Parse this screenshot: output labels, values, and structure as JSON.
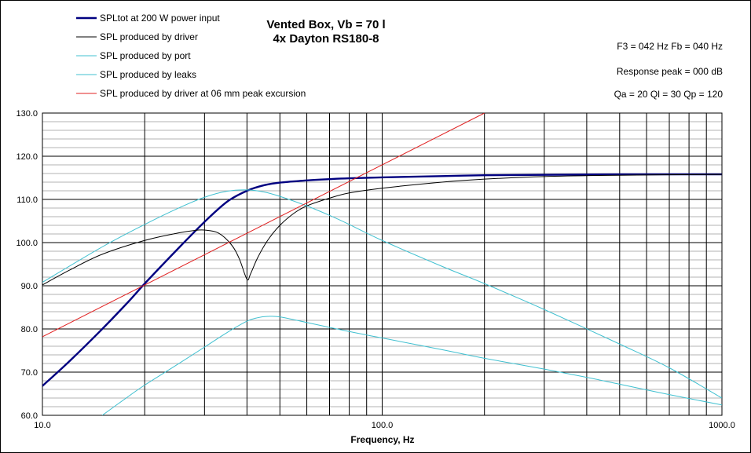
{
  "chart_data": {
    "type": "line",
    "title": "Vented Box, Vb = 70 l",
    "subtitle": "4x Dayton RS180-8",
    "xlabel": "Frequency, Hz",
    "ylabel": "",
    "x_scale": "log",
    "xlim": [
      10,
      1000
    ],
    "ylim": [
      60,
      130
    ],
    "x_tick_labels": [
      "10.0",
      "100.0",
      "1000.0"
    ],
    "y_tick_labels": [
      "60.0",
      "70.0",
      "80.0",
      "90.0",
      "100.0",
      "110.0",
      "120.0",
      "130.0"
    ],
    "grid": true,
    "legend_position": "top-left",
    "annotations": [
      "F3 = 042 Hz  Fb = 040 Hz",
      "Response  peak = 000 dB",
      "Qa = 20  Ql = 30  Qp = 120"
    ],
    "series": [
      {
        "name": "SPLtot at 200 W power input",
        "color": "#000080",
        "points": [
          [
            10,
            66.8
          ],
          [
            12,
            72.5
          ],
          [
            15,
            80
          ],
          [
            18,
            86.5
          ],
          [
            20,
            90.5
          ],
          [
            25,
            98.5
          ],
          [
            30,
            104.8
          ],
          [
            35,
            109.5
          ],
          [
            40,
            112
          ],
          [
            45,
            113.3
          ],
          [
            50,
            113.9
          ],
          [
            60,
            114.4
          ],
          [
            70,
            114.7
          ],
          [
            80,
            114.9
          ],
          [
            100,
            115.1
          ],
          [
            150,
            115.4
          ],
          [
            200,
            115.6
          ],
          [
            300,
            115.7
          ],
          [
            500,
            115.8
          ],
          [
            1000,
            115.8
          ]
        ]
      },
      {
        "name": "SPL produced by driver",
        "color": "#000000",
        "points": [
          [
            10,
            90.2
          ],
          [
            12,
            93.6
          ],
          [
            15,
            97.3
          ],
          [
            20,
            100.5
          ],
          [
            25,
            102.2
          ],
          [
            28,
            102.8
          ],
          [
            30,
            102.9
          ],
          [
            33,
            102.2
          ],
          [
            36,
            99.5
          ],
          [
            38,
            96.2
          ],
          [
            40,
            91.5
          ],
          [
            41,
            92.8
          ],
          [
            43,
            96.5
          ],
          [
            46,
            100.5
          ],
          [
            50,
            104
          ],
          [
            55,
            106.8
          ],
          [
            60,
            108.5
          ],
          [
            70,
            110.3
          ],
          [
            80,
            111.5
          ],
          [
            100,
            112.6
          ],
          [
            150,
            114
          ],
          [
            200,
            114.7
          ],
          [
            300,
            115.3
          ],
          [
            500,
            115.6
          ],
          [
            1000,
            115.8
          ]
        ]
      },
      {
        "name": "SPL produced by port",
        "color": "#40C0D0",
        "points": [
          [
            10,
            90.8
          ],
          [
            15,
            99
          ],
          [
            20,
            104.2
          ],
          [
            25,
            107.9
          ],
          [
            30,
            110.5
          ],
          [
            35,
            111.9
          ],
          [
            40,
            112.2
          ],
          [
            45,
            111.7
          ],
          [
            50,
            110.7
          ],
          [
            60,
            108.5
          ],
          [
            70,
            106.3
          ],
          [
            80,
            104.2
          ],
          [
            100,
            100.5
          ],
          [
            150,
            94.5
          ],
          [
            200,
            90.5
          ],
          [
            300,
            84.5
          ],
          [
            500,
            76.5
          ],
          [
            700,
            71
          ],
          [
            1000,
            64
          ]
        ]
      },
      {
        "name": "SPL produced by leaks",
        "color": "#40C0D0",
        "points": [
          [
            15,
            60
          ],
          [
            18,
            64.5
          ],
          [
            20,
            67
          ],
          [
            25,
            71.8
          ],
          [
            30,
            75.8
          ],
          [
            35,
            79.2
          ],
          [
            40,
            81.8
          ],
          [
            43,
            82.6
          ],
          [
            46,
            82.9
          ],
          [
            50,
            82.8
          ],
          [
            60,
            81.5
          ],
          [
            80,
            79.4
          ],
          [
            100,
            77.9
          ],
          [
            150,
            75.2
          ],
          [
            200,
            73.2
          ],
          [
            300,
            70.7
          ],
          [
            400,
            68.8
          ],
          [
            500,
            67.2
          ],
          [
            700,
            64.8
          ],
          [
            1000,
            62.4
          ]
        ]
      },
      {
        "name": "SPL produced by driver at 06 mm peak excursion",
        "color": "#E02020",
        "points": [
          [
            10,
            78.2
          ],
          [
            200,
            130
          ]
        ]
      }
    ]
  }
}
